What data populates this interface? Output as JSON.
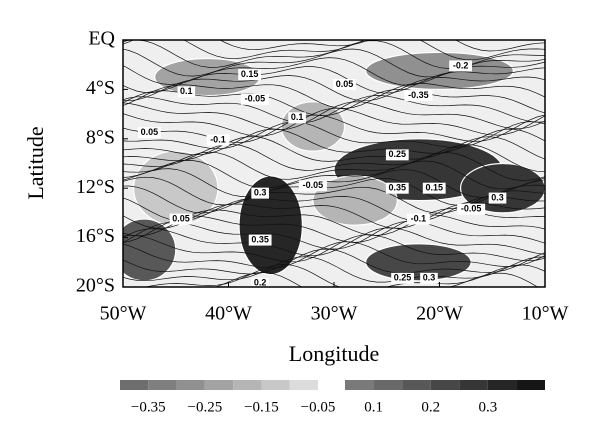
{
  "chart_data": {
    "type": "contour",
    "xlabel": "Longitude",
    "ylabel": "Latitude",
    "xlim": [
      -50,
      -10
    ],
    "xticks": [
      {
        "value": -50,
        "label": "50°W"
      },
      {
        "value": -40,
        "label": "40°W"
      },
      {
        "value": -30,
        "label": "30°W"
      },
      {
        "value": -20,
        "label": "20°W"
      },
      {
        "value": -10,
        "label": "10°W"
      }
    ],
    "ylim": [
      -20,
      0
    ],
    "yticks": [
      {
        "value": 0,
        "label": "EQ"
      },
      {
        "value": -4,
        "label": "4°S"
      },
      {
        "value": -8,
        "label": "8°S"
      },
      {
        "value": -12,
        "label": "12°S"
      },
      {
        "value": -16,
        "label": "16°S"
      },
      {
        "value": -20,
        "label": "20°S"
      }
    ],
    "colorbar_neg": {
      "bounds": [
        -0.4,
        -0.35,
        -0.3,
        -0.25,
        -0.2,
        -0.15,
        -0.1,
        -0.05
      ],
      "colors": [
        "#6e6e6e",
        "#7f7f7f",
        "#909090",
        "#a3a3a3",
        "#b5b5b5",
        "#c8c8c8",
        "#dcdcdc"
      ],
      "ticks": [
        {
          "value": -0.35,
          "label": "−0.35"
        },
        {
          "value": -0.25,
          "label": "−0.25"
        },
        {
          "value": -0.15,
          "label": "−0.15"
        },
        {
          "value": -0.05,
          "label": "−0.05"
        }
      ]
    },
    "colorbar_pos": {
      "bounds": [
        0.05,
        0.1,
        0.15,
        0.2,
        0.25,
        0.3,
        0.35,
        0.4
      ],
      "colors": [
        "#7a7a7a",
        "#696969",
        "#585858",
        "#474747",
        "#363636",
        "#262626",
        "#161616"
      ],
      "ticks": [
        0.1,
        0.2,
        0.3
      ]
    },
    "regions": [
      {
        "lon": -22,
        "lat": -10.5,
        "rx": 8,
        "ry": 2.5,
        "level": 0.3
      },
      {
        "lon": -14,
        "lat": -12,
        "rx": 4,
        "ry": 2,
        "level": 0.3
      },
      {
        "lon": -36,
        "lat": -15,
        "rx": 3,
        "ry": 4,
        "level": 0.35
      },
      {
        "lon": -22,
        "lat": -18,
        "rx": 5,
        "ry": 1.5,
        "level": 0.25
      },
      {
        "lon": -48,
        "lat": -17,
        "rx": 3,
        "ry": 2.5,
        "level": 0.2
      },
      {
        "lon": -20,
        "lat": -2.5,
        "rx": 7,
        "ry": 1.5,
        "level": -0.25
      },
      {
        "lon": -42,
        "lat": -3,
        "rx": 5,
        "ry": 1.5,
        "level": -0.2
      },
      {
        "lon": -32,
        "lat": -7,
        "rx": 3,
        "ry": 2,
        "level": -0.15
      },
      {
        "lon": -45,
        "lat": -12,
        "rx": 4,
        "ry": 3,
        "level": -0.1
      },
      {
        "lon": -28,
        "lat": -13,
        "rx": 4,
        "ry": 2,
        "level": -0.15
      }
    ],
    "contour_labels": [
      {
        "lon": -44,
        "lat": -4.2,
        "value": 0.1
      },
      {
        "lon": -38,
        "lat": -2.8,
        "value": 0.15
      },
      {
        "lon": -47.5,
        "lat": -7.5,
        "value": 0.05
      },
      {
        "lon": -41,
        "lat": -8.1,
        "value": -0.1
      },
      {
        "lon": -37.5,
        "lat": -4.8,
        "value": -0.05
      },
      {
        "lon": -33.5,
        "lat": -6.3,
        "value": 0.1
      },
      {
        "lon": -29,
        "lat": -3.6,
        "value": 0.05
      },
      {
        "lon": -22,
        "lat": -4.5,
        "value": -0.35
      },
      {
        "lon": -24,
        "lat": -9.3,
        "value": 0.25
      },
      {
        "lon": -24,
        "lat": -12,
        "value": 0.35
      },
      {
        "lon": -20.5,
        "lat": -12,
        "value": 0.15
      },
      {
        "lon": -14.5,
        "lat": -12.8,
        "value": 0.3
      },
      {
        "lon": -37,
        "lat": -12.4,
        "value": 0.3
      },
      {
        "lon": -37,
        "lat": -16.2,
        "value": 0.35
      },
      {
        "lon": -37,
        "lat": -19.7,
        "value": 0.2
      },
      {
        "lon": -23.5,
        "lat": -19.3,
        "value": 0.25
      },
      {
        "lon": -21,
        "lat": -19.3,
        "value": 0.3
      },
      {
        "lon": -32,
        "lat": -11.8,
        "value": -0.05
      },
      {
        "lon": -44.5,
        "lat": -14.5,
        "value": 0.05
      },
      {
        "lon": -22,
        "lat": -14.5,
        "value": -0.1
      },
      {
        "lon": -17,
        "lat": -13.7,
        "value": -0.05
      },
      {
        "lon": -18,
        "lat": -2.1,
        "value": -0.2
      }
    ]
  }
}
